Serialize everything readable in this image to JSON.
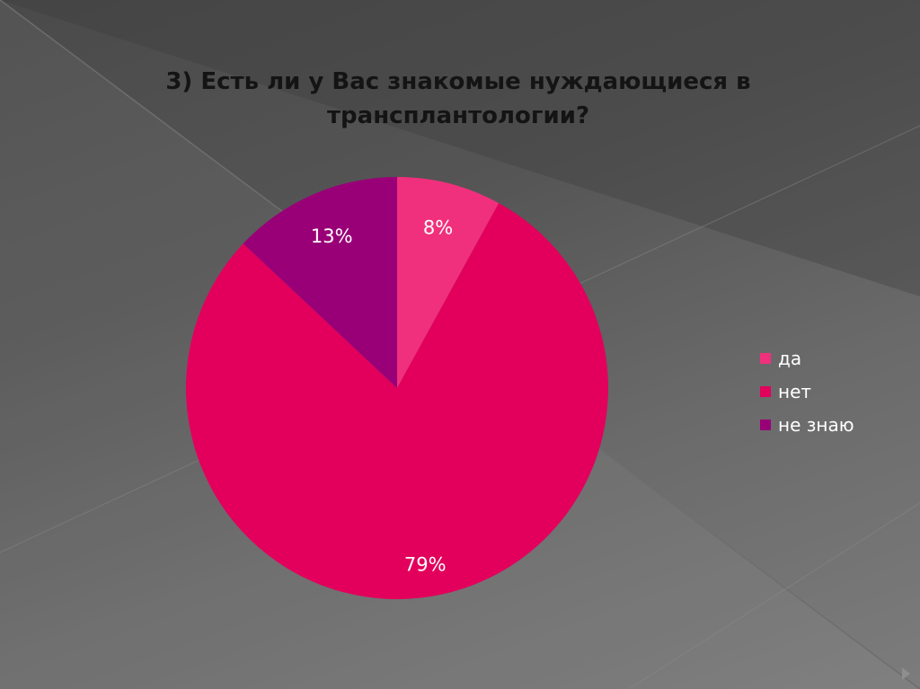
{
  "slide": {
    "background_colors": [
      "#4a4a4a",
      "#7c7c7c"
    ]
  },
  "chart_data": {
    "type": "pie",
    "title_lines": [
      "3) Есть ли у Вас знакомые нуждающиеся в",
      "трансплантологии?"
    ],
    "categories": [
      "да",
      "нет",
      "не знаю"
    ],
    "values": [
      8,
      79,
      13
    ],
    "value_labels": [
      "8%",
      "79%",
      "13%"
    ],
    "colors": [
      "#f0307c",
      "#e2005c",
      "#990077"
    ],
    "start_angle_deg": 0,
    "direction": "clockwise",
    "legend_position": "right"
  },
  "navigation": {
    "next_icon": "triangle-right-icon"
  }
}
